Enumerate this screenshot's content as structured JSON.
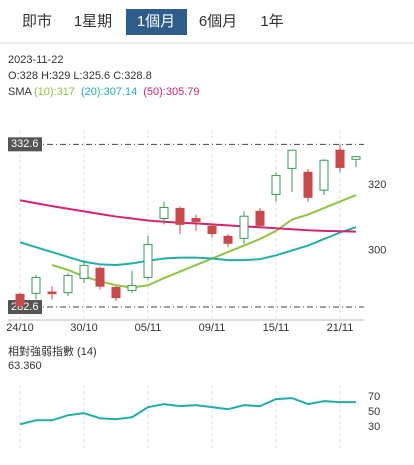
{
  "tabs": [
    "即市",
    "1星期",
    "1個月",
    "6個月",
    "1年"
  ],
  "selected_tab": 2,
  "header": {
    "date": "2023-11-22",
    "ohlc": "O:328 H:329 L:325.6 C:328.8"
  },
  "chart_data": [
    {
      "type": "candlestick",
      "indicator": "SMA",
      "categories": [
        "24/10",
        null,
        null,
        null,
        "30/10",
        null,
        null,
        null,
        "05/11",
        null,
        null,
        null,
        "09/11",
        null,
        null,
        null,
        "15/11",
        null,
        null,
        null,
        "21/11",
        null
      ],
      "open": [
        286.5,
        286.8,
        287.2,
        287,
        291.4,
        294.5,
        288.6,
        287.7,
        291.7,
        309.8,
        312.9,
        309.8,
        307.4,
        304.3,
        303.7,
        312,
        317.2,
        325.2,
        324,
        318.5,
        330.8,
        328
      ],
      "close": [
        283,
        291.7,
        286.7,
        292.3,
        295.4,
        289,
        285.5,
        289.2,
        301.8,
        313.2,
        308,
        308.9,
        305.2,
        302.2,
        310.5,
        307.7,
        323,
        330.8,
        316.3,
        327.7,
        325.5,
        328.8
      ],
      "high": [
        287,
        292.5,
        289,
        293,
        297,
        295,
        289,
        293.8,
        304.5,
        315,
        313.5,
        311,
        308,
        305,
        312,
        313,
        324,
        331,
        325,
        328,
        332.6,
        329
      ],
      "low": [
        282.6,
        285,
        285,
        286,
        290,
        288,
        284.5,
        287,
        291,
        308,
        305,
        306,
        304,
        301,
        302,
        307,
        315,
        318,
        315,
        317,
        324,
        325.6
      ],
      "up_color": "#3a9a5a",
      "down_color": "#c9484a",
      "series": [
        {
          "name": "(10):317",
          "color": "#8cc63f",
          "values": [
            null,
            null,
            295.5,
            294,
            292,
            290.5,
            289.3,
            288.6,
            289.3,
            291.5,
            293.5,
            295.5,
            297.5,
            299.5,
            301.5,
            303.5,
            306,
            309.5,
            311,
            313,
            315,
            317
          ]
        },
        {
          "name": "(20):307.14",
          "color": "#1fb0a5",
          "values": [
            302.5,
            301,
            299.5,
            298,
            296.5,
            295.7,
            295.5,
            296,
            296.8,
            297.5,
            297.8,
            297.8,
            297.5,
            297,
            297,
            297.3,
            298.5,
            300,
            301.5,
            303.5,
            305.5,
            307.14
          ]
        },
        {
          "name": "(50):305.79",
          "color": "#d6246e",
          "values": [
            315.4,
            314.5,
            313.6,
            312.8,
            312,
            311.2,
            310.4,
            309.8,
            309.2,
            308.8,
            308.5,
            308.3,
            308,
            307.7,
            307.4,
            307.1,
            306.8,
            306.5,
            306.2,
            306,
            305.9,
            305.79
          ]
        }
      ],
      "hlines": [
        332.6,
        282.6
      ],
      "ylim": [
        278,
        337
      ],
      "yticks": [
        300,
        320
      ]
    },
    {
      "type": "line",
      "title": "相對強弱指數 (14)",
      "subtitle": "63.360",
      "series": [
        {
          "color": "#1fb0a5",
          "values": [
            34,
            39.3,
            39.3,
            46,
            48.7,
            42,
            40.7,
            43.3,
            56.7,
            60.7,
            58,
            59.3,
            56.7,
            54,
            59.3,
            58,
            67.3,
            68.7,
            60.7,
            64.7,
            63.3,
            63.36
          ]
        }
      ],
      "ylim": [
        0,
        86
      ],
      "yticks": [
        30,
        50,
        70
      ]
    }
  ]
}
